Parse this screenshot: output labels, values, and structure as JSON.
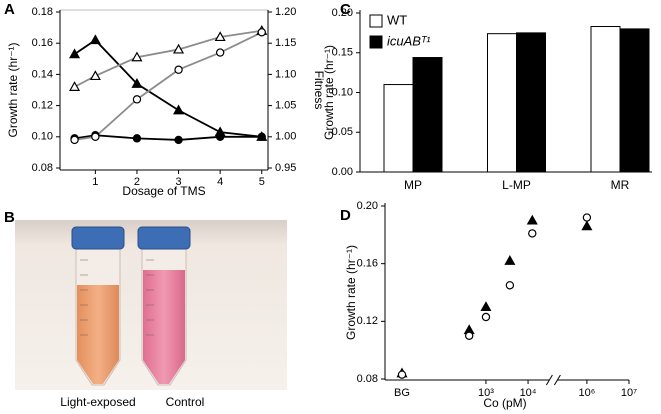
{
  "chart_data": [
    {
      "type": "line",
      "panel": "A",
      "x_label": "Dosage of TMS",
      "y_label": "Growth rate (hr⁻¹)",
      "y2_label": "Fitness",
      "x": [
        0.5,
        1,
        2,
        3,
        4,
        5
      ],
      "xlim": [
        0.15,
        5.15
      ],
      "xticks": [
        1,
        2,
        3,
        4,
        5
      ],
      "ylim": [
        0.08,
        0.18
      ],
      "yticks": [
        0.08,
        {
          "value": 0.1,
          "label": "0.10"
        },
        0.12,
        0.14,
        0.16,
        0.18
      ],
      "y2lim": [
        0.95,
        1.2
      ],
      "y2ticks": [
        0.95,
        {
          "value": 1,
          "label": "1.00"
        },
        1.05,
        {
          "value": 1.1,
          "label": "1.10"
        },
        1.15,
        {
          "value": 1.2,
          "label": "1.20"
        }
      ],
      "series": [
        {
          "marker": "triangle",
          "fill": true,
          "color": "#000000",
          "line_color": "#000000",
          "values": [
            0.153,
            0.162,
            0.134,
            0.117,
            0.103,
            0.1
          ],
          "errors": [
            0.005,
            0.004,
            0.002,
            0.001,
            0.001,
            0.001
          ]
        },
        {
          "marker": "circle",
          "fill": true,
          "color": "#000000",
          "line_color": "#000000",
          "values": [
            0.099,
            0.101,
            0.099,
            0.098,
            0.1,
            0.1
          ],
          "errors": [
            0.009,
            0.004,
            0.006,
            0.003,
            0.002,
            0.001
          ]
        },
        {
          "marker": "triangle",
          "fill": false,
          "color": "#000000",
          "line_color": "#8c8c8c",
          "values": [
            0.132,
            0.139,
            0.151,
            0.156,
            0.164,
            0.168
          ],
          "errors": [
            0.002,
            0.005,
            0.003,
            0.004,
            0.002,
            0.002
          ]
        },
        {
          "marker": "circle",
          "fill": false,
          "color": "#000000",
          "line_color": "#8c8c8c",
          "values": [
            0.098,
            0.1,
            0.124,
            0.143,
            0.154,
            0.167
          ],
          "errors": [
            0.002,
            0.002,
            0.002,
            0.004,
            0.002,
            0.002
          ]
        }
      ]
    },
    {
      "type": "bar",
      "panel": "C",
      "y_label": "Growth rate (hr⁻¹)",
      "categories": [
        "MP",
        "L-MP",
        "MR"
      ],
      "ylim": [
        0,
        0.2
      ],
      "yticks": [
        {
          "value": 0,
          "label": "0.00"
        },
        0.05,
        {
          "value": 0.1,
          "label": "0.10"
        },
        0.15,
        {
          "value": 0.2,
          "label": "0.20"
        }
      ],
      "legend": "upper left",
      "series": [
        {
          "name": "WT",
          "color": "#ffffff",
          "values": [
            0.11,
            0.174,
            0.183
          ],
          "errors": [
            0.003,
            0.002,
            0.008
          ]
        },
        {
          "name": "icuABᵀ¹",
          "color": "#000000",
          "values": [
            0.144,
            0.175,
            0.18
          ],
          "errors": [
            0.004,
            0.002,
            0.01
          ]
        }
      ]
    },
    {
      "type": "scatter",
      "panel": "D",
      "x_label": "Co (pM)",
      "y_label": "Growth rate (hr⁻¹)",
      "x": [
        "BG",
        400,
        1000,
        3700,
        12600,
        1000000
      ],
      "xscale": "log",
      "xlim": [
        4,
        10000000
      ],
      "xbreak": [
        40000,
        160000
      ],
      "xticks": [
        {
          "value": 1000,
          "label": "10³"
        },
        {
          "value": 10000,
          "label": "10⁴"
        },
        {
          "value": 1000000,
          "label": "10⁶"
        },
        {
          "value": 10000000,
          "label": "10⁷"
        }
      ],
      "ylim": [
        0.08,
        0.2
      ],
      "yticks": [
        0.08,
        0.12,
        0.16,
        {
          "value": 0.2,
          "label": "0.20"
        }
      ],
      "series": [
        {
          "marker": "triangle",
          "fill": true,
          "color": "#000000",
          "values": [
            0.084,
            0.114,
            0.13,
            0.162,
            0.19,
            0.186
          ],
          "errors": [
            0.002,
            0.008,
            0.003,
            0.006,
            0.007,
            0.005
          ]
        },
        {
          "marker": "circle",
          "fill": false,
          "color": "#000000",
          "values": [
            0.083,
            0.11,
            0.123,
            0.145,
            0.181,
            0.192
          ],
          "errors": [
            0.002,
            0.004,
            0.003,
            0.002,
            0.004,
            0.003
          ]
        }
      ]
    }
  ],
  "photo": {
    "panel": "B",
    "captions": [
      "Light-exposed",
      "Control"
    ]
  }
}
